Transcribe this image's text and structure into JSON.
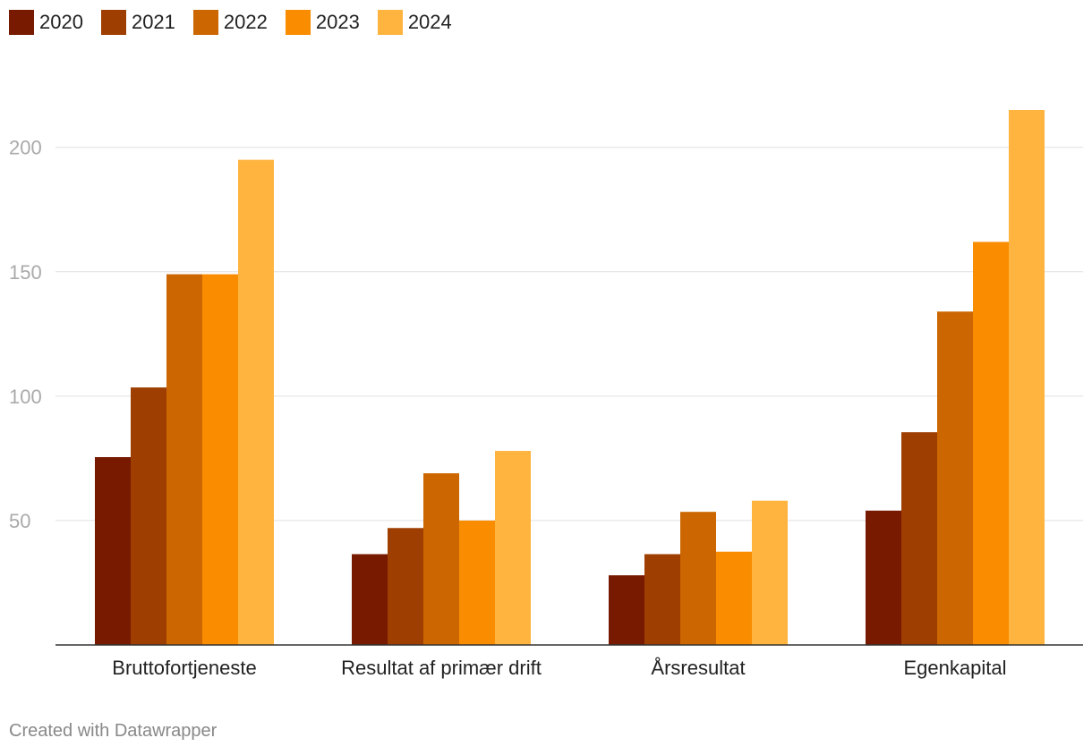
{
  "chart_data": {
    "type": "bar",
    "categories": [
      "Bruttofortjeneste",
      "Resultat af primær drift",
      "Årsresultat",
      "Egenkapital"
    ],
    "series": [
      {
        "name": "2020",
        "color": "#771a00",
        "values": [
          75.5,
          36.5,
          28,
          54
        ]
      },
      {
        "name": "2021",
        "color": "#9e3e00",
        "values": [
          103.5,
          47,
          36.5,
          85.5
        ]
      },
      {
        "name": "2022",
        "color": "#cc6600",
        "values": [
          149,
          69,
          53.5,
          134
        ]
      },
      {
        "name": "2023",
        "color": "#fa8c00",
        "values": [
          149,
          50,
          37.5,
          162
        ]
      },
      {
        "name": "2024",
        "color": "#ffb43f",
        "values": [
          195,
          78,
          58,
          215
        ]
      }
    ],
    "y_ticks": [
      50,
      100,
      150,
      200
    ],
    "ylim": [
      0,
      215
    ],
    "grid": true,
    "legend_position": "top-left",
    "title": "",
    "xlabel": "",
    "ylabel": ""
  },
  "credit": "Created with Datawrapper"
}
